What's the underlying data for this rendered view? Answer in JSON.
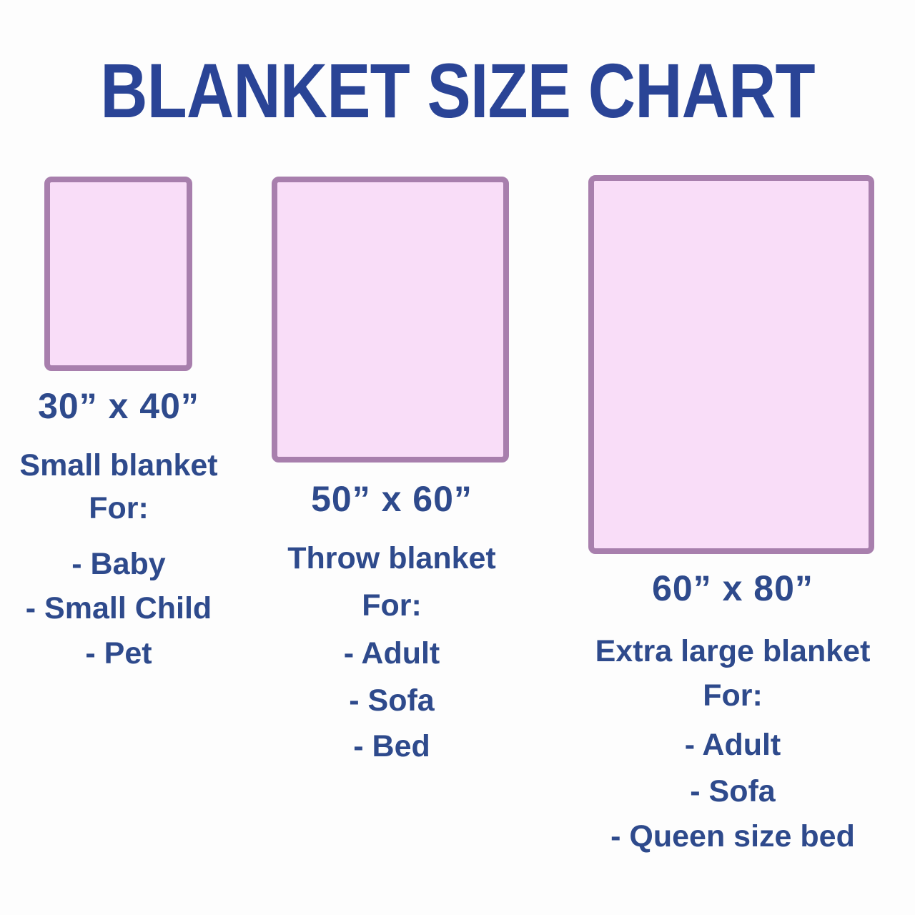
{
  "title": "BLANKET SIZE CHART",
  "colors": {
    "title-blue": "#2a4496",
    "text-navy": "#2e4a8c",
    "blanket-fill": "#f9ddf8",
    "blanket-border": "#a87fad",
    "background": "#fdfdfd"
  },
  "columns": [
    {
      "size": "30” x 40”",
      "name": "Small blanket",
      "for": "For:",
      "items": [
        "- Baby",
        "- Small Child",
        "- Pet"
      ]
    },
    {
      "size": "50” x 60”",
      "name": "Throw blanket",
      "for": "For:",
      "items": [
        "- Adult",
        "- Sofa",
        "- Bed"
      ]
    },
    {
      "size": "60” x 80”",
      "name": "Extra large blanket",
      "for": "For:",
      "items": [
        "- Adult",
        "- Sofa",
        "- Queen size bed"
      ]
    }
  ]
}
